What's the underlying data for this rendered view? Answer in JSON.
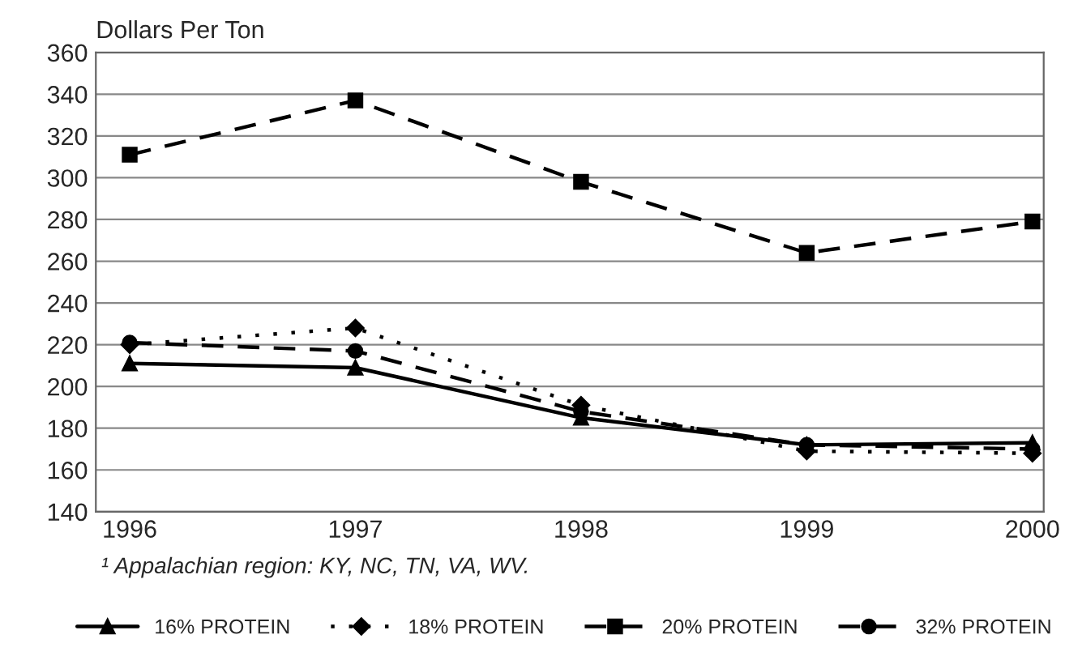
{
  "chart_data": {
    "type": "line",
    "ylabel": "Dollars Per Ton",
    "categories": [
      "1996",
      "1997",
      "1998",
      "1999",
      "2000"
    ],
    "series": [
      {
        "name": "16% PROTEIN",
        "color": "#000000",
        "marker": "triangle",
        "line_style": "solid",
        "values": [
          211,
          209,
          185,
          172,
          173
        ]
      },
      {
        "name": "18% PROTEIN",
        "color": "#000000",
        "marker": "diamond",
        "line_style": "dotted",
        "values": [
          220,
          228,
          191,
          169,
          168
        ]
      },
      {
        "name": "20% PROTEIN",
        "color": "#000000",
        "marker": "square",
        "line_style": "dashed",
        "values": [
          311,
          337,
          298,
          264,
          279
        ]
      },
      {
        "name": "32% PROTEIN",
        "color": "#000000",
        "marker": "circle",
        "line_style": "dashed",
        "values": [
          221,
          217,
          188,
          172,
          170
        ]
      }
    ],
    "ylim": [
      140,
      360
    ],
    "yticks": [
      140,
      160,
      180,
      200,
      220,
      240,
      260,
      280,
      300,
      320,
      340,
      360
    ],
    "grid": "y",
    "legend": "bottom",
    "annotations": [
      "¹ Appalachian region: KY, NC, TN, VA, WV."
    ]
  }
}
